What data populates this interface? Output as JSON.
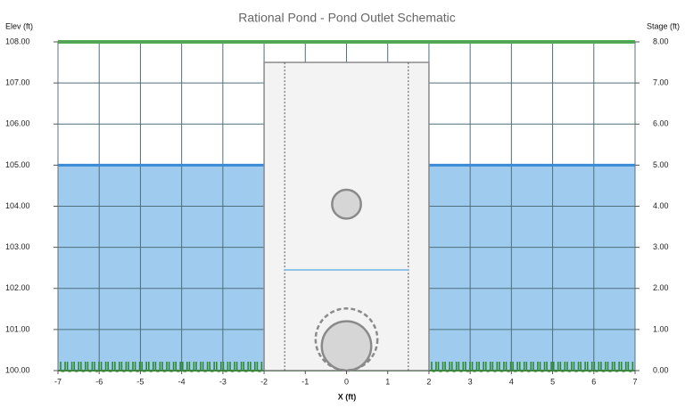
{
  "chart_data": {
    "type": "schematic",
    "title": "Rational Pond - Pond Outlet Schematic",
    "y_label": "Elev (ft)",
    "y2_label": "Stage (ft)",
    "x_label": "X (ft)",
    "xlim": [
      -7,
      7
    ],
    "xticks": [
      -7,
      -6,
      -5,
      -4,
      -3,
      -2,
      -1,
      0,
      1,
      2,
      3,
      4,
      5,
      6,
      7
    ],
    "ylim": [
      100,
      108
    ],
    "yticks": [
      {
        "value": 100,
        "label": "100.00"
      },
      {
        "value": 101,
        "label": "101.00"
      },
      {
        "value": 102,
        "label": "102.00"
      },
      {
        "value": 103,
        "label": "103.00"
      },
      {
        "value": 104,
        "label": "104.00"
      },
      {
        "value": 105,
        "label": "105.00"
      },
      {
        "value": 106,
        "label": "106.00"
      },
      {
        "value": 107,
        "label": "107.00"
      },
      {
        "value": 108,
        "label": "108.00"
      }
    ],
    "y2lim": [
      0,
      8
    ],
    "y2ticks": [
      {
        "value": 0,
        "label": "0.00"
      },
      {
        "value": 1,
        "label": "1.00"
      },
      {
        "value": 2,
        "label": "2.00"
      },
      {
        "value": 3,
        "label": "3.00"
      },
      {
        "value": 4,
        "label": "4.00"
      },
      {
        "value": 5,
        "label": "5.00"
      },
      {
        "value": 6,
        "label": "6.00"
      },
      {
        "value": 7,
        "label": "7.00"
      },
      {
        "value": 8,
        "label": "8.00"
      }
    ],
    "grid": true,
    "grid_color": "#4f6f7a",
    "water_elev": 105,
    "water_color": "#9ecbee",
    "water_line_color": "#3a8ad6",
    "top_elev": 108,
    "top_color": "#4caf50",
    "structure": {
      "x": [
        -2,
        2
      ],
      "top": 107.5,
      "fill": "#f3f3f3",
      "stroke": "#8a8a8a"
    },
    "weir_x": [
      -1.5,
      1.5
    ],
    "weir_crest": 102.45,
    "weir_color": "#8ec3ea",
    "orifices": [
      {
        "x": 0,
        "y": 104.05,
        "diameter": 0.7,
        "dashed": false
      },
      {
        "x": 0,
        "y": 100.6,
        "diameter": 1.2,
        "dashed": false
      },
      {
        "x": 0,
        "y": 100.76,
        "diameter": 1.5,
        "dashed": true
      }
    ]
  }
}
